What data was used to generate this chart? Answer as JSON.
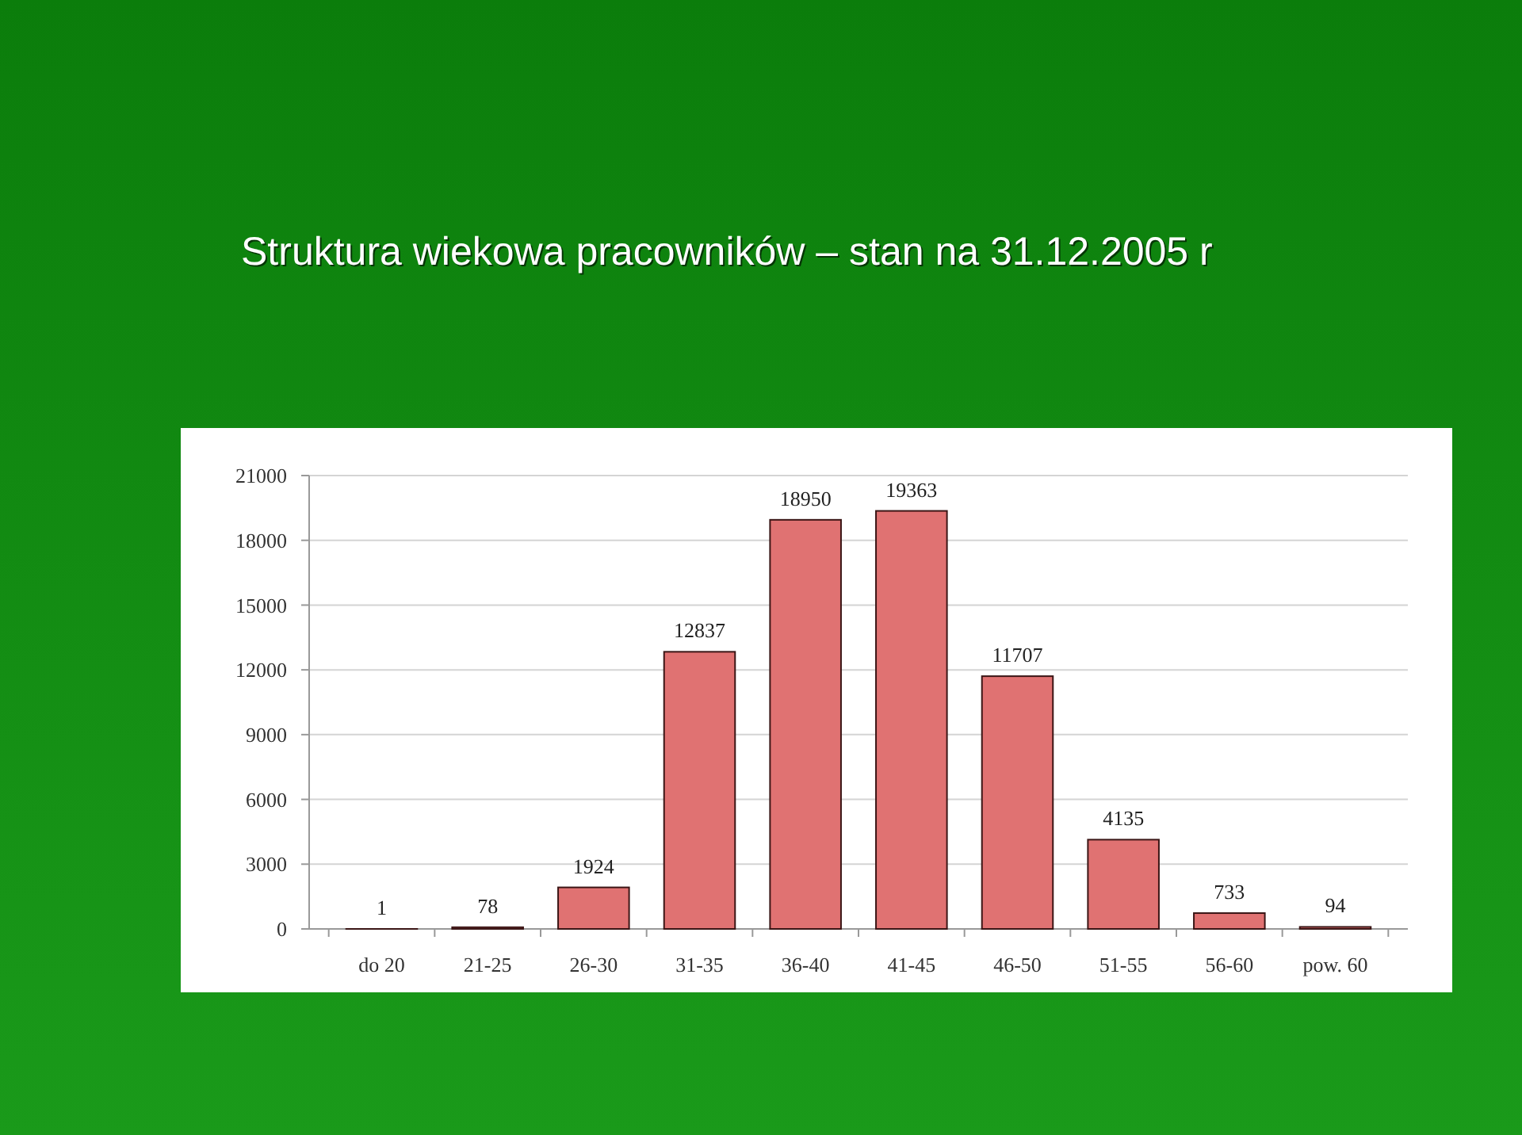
{
  "chart_data": {
    "type": "bar",
    "title": "Struktura wiekowa pracowników – stan na 31.12.2005 r",
    "categories": [
      "do 20",
      "21-25",
      "26-30",
      "31-35",
      "36-40",
      "41-45",
      "46-50",
      "51-55",
      "56-60",
      "pow. 60"
    ],
    "values": [
      1,
      78,
      1924,
      12837,
      18950,
      19363,
      11707,
      4135,
      733,
      94
    ],
    "color": "#e07272",
    "ylim": [
      0,
      21000
    ],
    "yticks": [
      0,
      3000,
      6000,
      9000,
      12000,
      15000,
      18000,
      21000
    ],
    "grid": "y",
    "data_labels": true
  }
}
